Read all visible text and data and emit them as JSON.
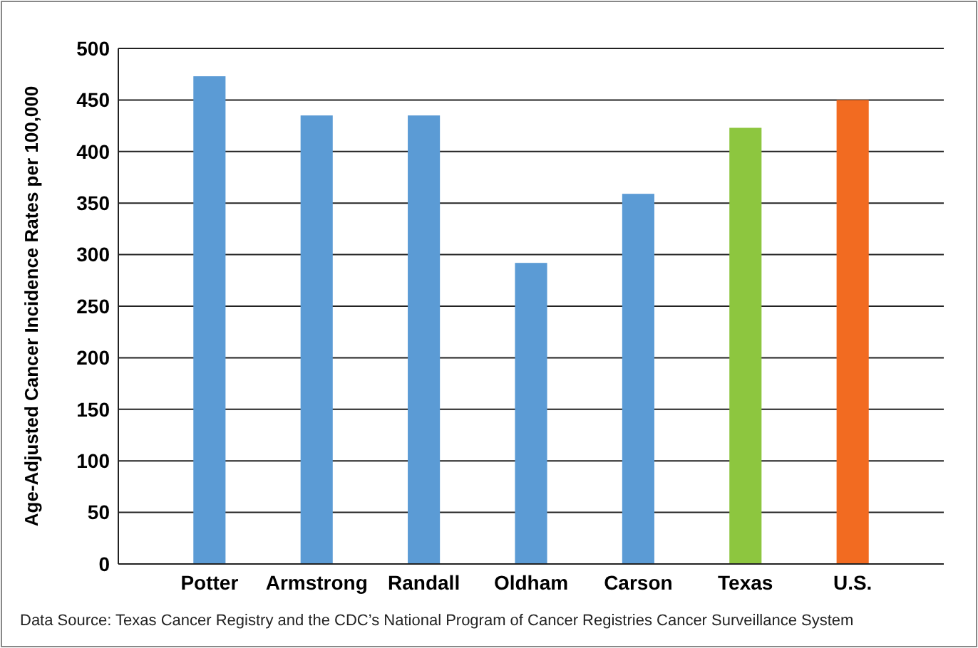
{
  "chart_data": {
    "type": "bar",
    "ylabel": "Age-Adjusted Cancer Incidence Rates per 100,000",
    "categories": [
      "Potter",
      "Armstrong",
      "Randall",
      "Oldham",
      "Carson",
      "Texas",
      "U.S."
    ],
    "values": [
      473,
      435,
      435,
      292,
      359,
      423,
      450
    ],
    "colors": [
      "#5b9bd5",
      "#5b9bd5",
      "#5b9bd5",
      "#5b9bd5",
      "#5b9bd5",
      "#8dc63f",
      "#f26b21"
    ],
    "ylim": [
      0,
      500
    ],
    "yticks": [
      0,
      50,
      100,
      150,
      200,
      250,
      300,
      350,
      400,
      450,
      500
    ],
    "grid": "y",
    "annotations": [
      "Data Source: Texas Cancer Registry and the CDC’s National Program of Cancer Registries Cancer Surveillance System"
    ]
  }
}
